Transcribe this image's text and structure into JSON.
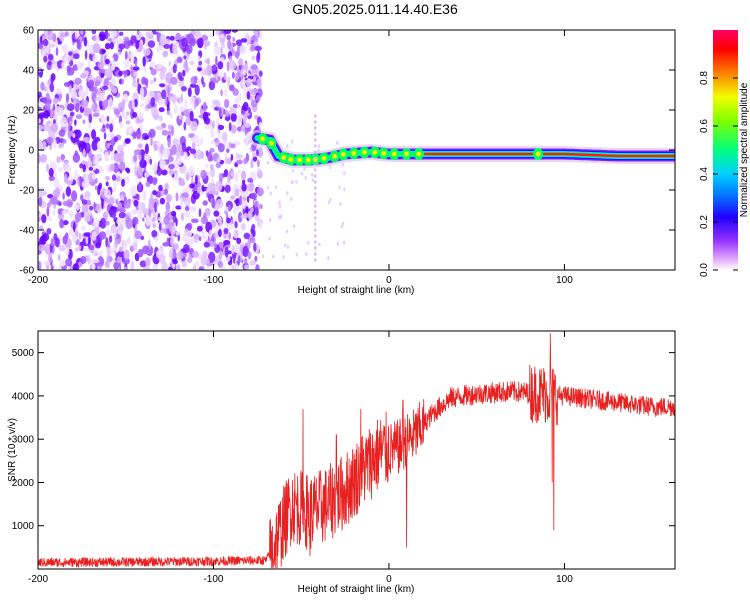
{
  "title": "GN05.2025.011.14.40.E36",
  "chart_data": [
    {
      "type": "heatmap",
      "xlabel": "Height of straight line (km)",
      "ylabel": "Frequency (Hz)",
      "xlim": [
        -200,
        163
      ],
      "ylim": [
        -60,
        60
      ],
      "x_ticks": [
        -200,
        -100,
        0,
        100
      ],
      "y_ticks": [
        -60,
        -40,
        -20,
        0,
        20,
        40,
        60
      ],
      "colorbar": {
        "label": "Normalized spectral amplitude",
        "range": [
          0,
          1
        ],
        "ticks": [
          0.0,
          0.2,
          0.4,
          0.6,
          0.8
        ],
        "tick_labels": [
          "0.0",
          "0.2",
          "0.4",
          "0.6",
          "0.8"
        ],
        "colors": [
          "#ffffff",
          "#cc66ff",
          "#6600ff",
          "#0000ff",
          "#00c8ff",
          "#00ff64",
          "#c8ff00",
          "#ff8000",
          "#ff0000",
          "#ff0066"
        ]
      },
      "noise_region_x": [
        -200,
        -75
      ],
      "signal_track": [
        {
          "x": -75,
          "y": 6
        },
        {
          "x": -68,
          "y": 5
        },
        {
          "x": -63,
          "y": -3
        },
        {
          "x": -55,
          "y": -5
        },
        {
          "x": -45,
          "y": -5
        },
        {
          "x": -35,
          "y": -4
        },
        {
          "x": -25,
          "y": -2
        },
        {
          "x": -10,
          "y": -1
        },
        {
          "x": 0,
          "y": -2
        },
        {
          "x": 50,
          "y": -2
        },
        {
          "x": 100,
          "y": -2
        },
        {
          "x": 130,
          "y": -3
        },
        {
          "x": 163,
          "y": -3
        }
      ]
    },
    {
      "type": "line",
      "xlabel": "Height of straight line (km)",
      "ylabel": "SNR (10 * v/v)",
      "xlim": [
        -200,
        163
      ],
      "ylim": [
        0,
        5500
      ],
      "x_ticks": [
        -200,
        -100,
        0,
        100
      ],
      "y_ticks": [
        1000,
        2000,
        3000,
        4000,
        5000
      ],
      "color": "#e82020",
      "envelope": [
        {
          "x": -200,
          "y": 150
        },
        {
          "x": -150,
          "y": 160
        },
        {
          "x": -100,
          "y": 180
        },
        {
          "x": -70,
          "y": 200
        },
        {
          "x": -65,
          "y": 600
        },
        {
          "x": -55,
          "y": 1500
        },
        {
          "x": -45,
          "y": 1300
        },
        {
          "x": -35,
          "y": 1500
        },
        {
          "x": -25,
          "y": 1800
        },
        {
          "x": -15,
          "y": 2300
        },
        {
          "x": -5,
          "y": 2700
        },
        {
          "x": 5,
          "y": 2800
        },
        {
          "x": 15,
          "y": 3100
        },
        {
          "x": 25,
          "y": 3600
        },
        {
          "x": 35,
          "y": 3950
        },
        {
          "x": 50,
          "y": 4050
        },
        {
          "x": 70,
          "y": 4100
        },
        {
          "x": 90,
          "y": 4050
        },
        {
          "x": 110,
          "y": 3950
        },
        {
          "x": 130,
          "y": 3850
        },
        {
          "x": 150,
          "y": 3750
        },
        {
          "x": 163,
          "y": 3750
        }
      ],
      "spikes": [
        {
          "x": -49,
          "y": 3700
        },
        {
          "x": -45,
          "y": 300
        },
        {
          "x": -30,
          "y": 3100
        },
        {
          "x": -16,
          "y": 3700
        },
        {
          "x": -14,
          "y": 2000
        },
        {
          "x": 8,
          "y": 3900
        },
        {
          "x": 10,
          "y": 500
        },
        {
          "x": 86,
          "y": 4600
        },
        {
          "x": 92,
          "y": 5450
        },
        {
          "x": 93,
          "y": 2000
        },
        {
          "x": 94,
          "y": 900
        }
      ]
    }
  ]
}
